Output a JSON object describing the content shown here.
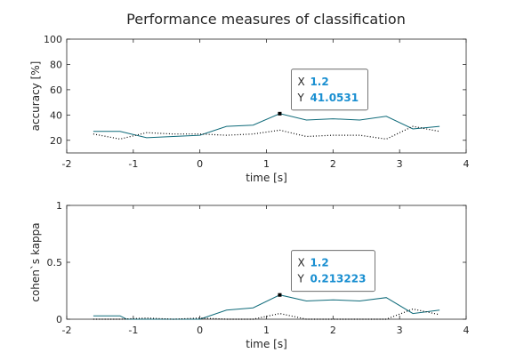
{
  "title": "Performance measures of classification",
  "chart_data": [
    {
      "type": "line",
      "xlabel": "time [s]",
      "ylabel": "accuracy [%]",
      "xlim": [
        -2,
        4
      ],
      "ylim": [
        10,
        100
      ],
      "xticks": [
        "-2",
        "-1",
        "0",
        "1",
        "2",
        "3",
        "4"
      ],
      "yticks": [
        "20",
        "40",
        "60",
        "80",
        "100"
      ],
      "grid": false,
      "series": [
        {
          "style": "solid",
          "color": "#0f6b7a",
          "x": [
            -1.6,
            -1.2,
            -0.8,
            -0.4,
            0.0,
            0.4,
            0.8,
            1.2,
            1.6,
            2.0,
            2.4,
            2.8,
            3.2,
            3.6
          ],
          "values": [
            27,
            27,
            22,
            23,
            24,
            31,
            32,
            41.0531,
            36,
            37,
            36,
            39,
            29,
            31
          ]
        },
        {
          "style": "dotted",
          "color": "#000000",
          "x": [
            -1.6,
            -1.2,
            -0.8,
            -0.4,
            0.0,
            0.4,
            0.8,
            1.2,
            1.6,
            2.0,
            2.4,
            2.8,
            3.2,
            3.6
          ],
          "values": [
            25,
            21,
            26,
            25,
            25,
            24,
            25,
            28,
            23,
            24,
            24,
            21,
            31,
            27
          ]
        }
      ],
      "datatip": {
        "x_label": "X",
        "y_label": "Y",
        "x": "1.2",
        "y": "41.0531",
        "x_value": 1.2,
        "y_value": 41.0531
      }
    },
    {
      "type": "line",
      "xlabel": "time [s]",
      "ylabel": "cohen`s kappa",
      "xlim": [
        -2,
        4
      ],
      "ylim": [
        0,
        1
      ],
      "xticks": [
        "-2",
        "-1",
        "0",
        "1",
        "2",
        "3",
        "4"
      ],
      "yticks": [
        "0",
        "0.5",
        "1"
      ],
      "grid": false,
      "series": [
        {
          "style": "solid",
          "color": "#0f6b7a",
          "x": [
            -1.6,
            -1.2,
            -1.1,
            -0.8,
            -0.4,
            0.0,
            0.4,
            0.8,
            1.2,
            1.6,
            2.0,
            2.4,
            2.8,
            3.2,
            3.6
          ],
          "values": [
            0.03,
            0.03,
            0.0,
            0.0,
            0.0,
            0.0,
            0.08,
            0.1,
            0.213223,
            0.16,
            0.17,
            0.16,
            0.19,
            0.05,
            0.08
          ]
        },
        {
          "style": "dotted",
          "color": "#000000",
          "x": [
            -1.6,
            -1.2,
            -0.8,
            -0.4,
            0.0,
            0.4,
            0.8,
            1.2,
            1.6,
            2.0,
            2.4,
            2.8,
            3.2,
            3.6
          ],
          "values": [
            0.0,
            0.0,
            0.01,
            0.0,
            0.01,
            0.0,
            0.0,
            0.05,
            0.0,
            0.0,
            0.0,
            0.0,
            0.09,
            0.04
          ]
        }
      ],
      "datatip": {
        "x_label": "X",
        "y_label": "Y",
        "x": "1.2",
        "y": "0.213223",
        "x_value": 1.2,
        "y_value": 0.213223
      }
    }
  ]
}
